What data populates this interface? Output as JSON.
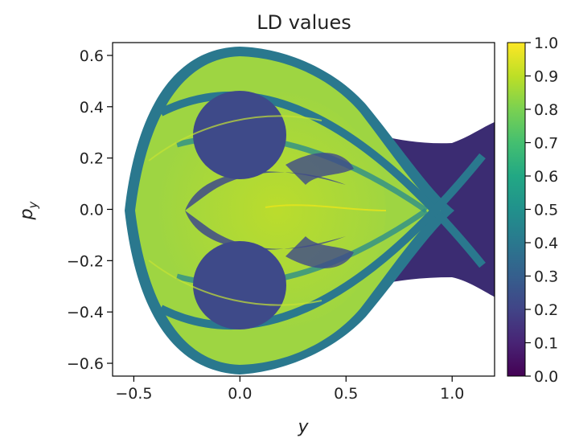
{
  "chart_data": {
    "type": "heatmap",
    "title": "LD values",
    "xlabel": "y",
    "ylabel": "p_y",
    "xlim": [
      -0.6,
      1.2
    ],
    "ylim": [
      -0.65,
      0.65
    ],
    "x_ticks": [
      -0.5,
      0.0,
      0.5,
      1.0
    ],
    "x_tick_labels": [
      "−0.5",
      "0.0",
      "0.5",
      "1.0"
    ],
    "y_ticks": [
      -0.6,
      -0.4,
      -0.2,
      0.0,
      0.2,
      0.4,
      0.6
    ],
    "y_tick_labels": [
      "−0.6",
      "−0.4",
      "−0.2",
      "0.0",
      "0.2",
      "0.4",
      "0.6"
    ],
    "colorbar": {
      "colormap": "viridis",
      "range": [
        0.0,
        1.0
      ],
      "ticks": [
        0.0,
        0.1,
        0.2,
        0.3,
        0.4,
        0.5,
        0.6,
        0.7,
        0.8,
        0.9,
        1.0
      ],
      "tick_labels": [
        "0.0",
        "0.1",
        "0.2",
        "0.3",
        "0.4",
        "0.5",
        "0.6",
        "0.7",
        "0.8",
        "0.9",
        "1.0"
      ]
    },
    "grid": false,
    "colors": {
      "background": "#ffffff",
      "level_low": "#440154",
      "level_mid": "#21908d",
      "level_high": "#b5de2b"
    }
  }
}
